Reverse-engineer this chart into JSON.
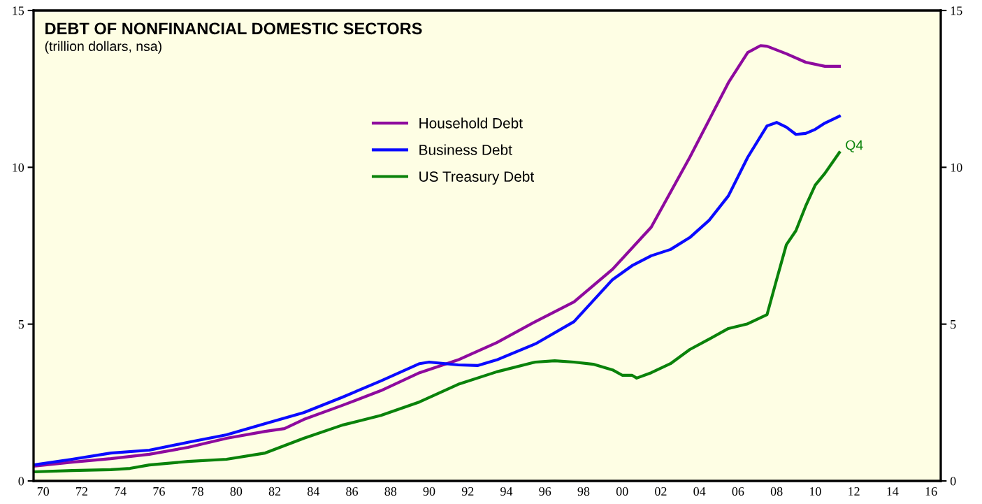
{
  "chart_data": {
    "type": "line",
    "title": "DEBT OF NONFINANCIAL DOMESTIC SECTORS",
    "subtitle": "(trillion dollars, nsa)",
    "series": [
      {
        "name": "Household Debt",
        "color": "#8e0a9e",
        "x": [
          "1970-01",
          "1972-01",
          "1974-01",
          "1976-01",
          "1978-01",
          "1980-01",
          "1982-01",
          "1983-01",
          "1984-01",
          "1986-01",
          "1988-01",
          "1990-01",
          "1992-01",
          "1994-01",
          "1996-01",
          "1998-01",
          "2000-01",
          "2002-01",
          "2004-01",
          "2006-01",
          "2007-01",
          "2007-09",
          "2008-01",
          "2009-01",
          "2010-01",
          "2011-01",
          "2011-10"
        ],
        "values": [
          0.47,
          0.6,
          0.71,
          0.85,
          1.07,
          1.36,
          1.58,
          1.67,
          1.96,
          2.41,
          2.88,
          3.45,
          3.86,
          4.41,
          5.08,
          5.71,
          6.75,
          8.09,
          10.32,
          12.7,
          13.66,
          13.88,
          13.86,
          13.62,
          13.35,
          13.22,
          13.22
        ]
      },
      {
        "name": "Business Debt",
        "color": "#0a0aff",
        "x": [
          "1970-01",
          "1972-01",
          "1974-01",
          "1976-01",
          "1978-01",
          "1980-01",
          "1982-01",
          "1984-01",
          "1986-01",
          "1988-01",
          "1990-01",
          "1990-07",
          "1992-01",
          "1993-01",
          "1994-01",
          "1996-01",
          "1998-01",
          "2000-01",
          "2001-01",
          "2002-01",
          "2003-01",
          "2004-01",
          "2005-01",
          "2006-01",
          "2007-01",
          "2008-01",
          "2008-07",
          "2009-01",
          "2009-07",
          "2010-01",
          "2010-07",
          "2011-01",
          "2011-10"
        ],
        "values": [
          0.51,
          0.69,
          0.89,
          0.98,
          1.23,
          1.47,
          1.83,
          2.18,
          2.67,
          3.19,
          3.74,
          3.79,
          3.7,
          3.68,
          3.86,
          4.37,
          5.08,
          6.42,
          6.86,
          7.18,
          7.38,
          7.76,
          8.31,
          9.09,
          10.32,
          11.32,
          11.43,
          11.28,
          11.05,
          11.08,
          11.21,
          11.41,
          11.63
        ]
      },
      {
        "name": "US Treasury Debt",
        "color": "#0a820a",
        "x": [
          "1970-01",
          "1972-01",
          "1974-01",
          "1975-01",
          "1976-01",
          "1978-01",
          "1980-01",
          "1982-01",
          "1984-01",
          "1986-01",
          "1988-01",
          "1990-01",
          "1992-01",
          "1994-01",
          "1996-01",
          "1997-01",
          "1998-01",
          "1999-01",
          "2000-01",
          "2000-07",
          "2001-01",
          "2001-04",
          "2002-01",
          "2003-01",
          "2004-01",
          "2005-01",
          "2006-01",
          "2007-01",
          "2008-01",
          "2008-07",
          "2009-01",
          "2009-07",
          "2010-01",
          "2010-07",
          "2011-01",
          "2011-10"
        ],
        "values": [
          0.29,
          0.33,
          0.36,
          0.4,
          0.51,
          0.62,
          0.69,
          0.89,
          1.36,
          1.78,
          2.09,
          2.52,
          3.08,
          3.48,
          3.79,
          3.83,
          3.79,
          3.72,
          3.54,
          3.37,
          3.37,
          3.28,
          3.45,
          3.74,
          4.19,
          4.52,
          4.86,
          5.01,
          5.3,
          6.42,
          7.53,
          7.98,
          8.76,
          9.43,
          9.81,
          10.47
        ]
      }
    ],
    "annotations": [
      {
        "text": "Q4",
        "x": "2011-10",
        "y": 10.47
      }
    ],
    "xlim": [
      "1970-01-01",
      "2017-01-01"
    ],
    "xticks": [
      {
        "value": "1970-07-01",
        "label": "70"
      },
      {
        "value": "1972-07-01",
        "label": "72"
      },
      {
        "value": "1974-07-01",
        "label": "74"
      },
      {
        "value": "1976-07-01",
        "label": "76"
      },
      {
        "value": "1978-07-01",
        "label": "78"
      },
      {
        "value": "1980-07-01",
        "label": "80"
      },
      {
        "value": "1982-07-01",
        "label": "82"
      },
      {
        "value": "1984-07-01",
        "label": "84"
      },
      {
        "value": "1986-07-01",
        "label": "86"
      },
      {
        "value": "1988-07-01",
        "label": "88"
      },
      {
        "value": "1990-07-01",
        "label": "90"
      },
      {
        "value": "1992-07-01",
        "label": "92"
      },
      {
        "value": "1994-07-01",
        "label": "94"
      },
      {
        "value": "1996-07-01",
        "label": "96"
      },
      {
        "value": "1998-07-01",
        "label": "98"
      },
      {
        "value": "2000-07-01",
        "label": "00"
      },
      {
        "value": "2002-07-01",
        "label": "02"
      },
      {
        "value": "2004-07-01",
        "label": "04"
      },
      {
        "value": "2006-07-01",
        "label": "06"
      },
      {
        "value": "2008-07-01",
        "label": "08"
      },
      {
        "value": "2010-07-01",
        "label": "10"
      },
      {
        "value": "2012-07-01",
        "label": "12"
      },
      {
        "value": "2014-07-01",
        "label": "14"
      },
      {
        "value": "2016-07-01",
        "label": "16"
      }
    ],
    "ylim": [
      0,
      15
    ],
    "yticks": [
      0,
      5,
      10,
      15
    ],
    "y2lim": [
      0,
      15
    ],
    "y2ticks": [
      0,
      5,
      10,
      15
    ],
    "grid": false,
    "legend": "top",
    "marker": "none",
    "line_style": "solid"
  }
}
